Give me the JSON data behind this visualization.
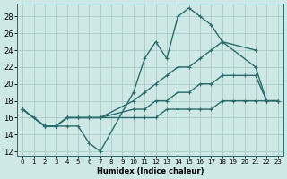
{
  "xlabel": "Humidex (Indice chaleur)",
  "xlim": [
    -0.5,
    23.5
  ],
  "ylim": [
    11.5,
    29.5
  ],
  "xticks": [
    0,
    1,
    2,
    3,
    4,
    5,
    6,
    7,
    8,
    9,
    10,
    11,
    12,
    13,
    14,
    15,
    16,
    17,
    18,
    19,
    20,
    21,
    22,
    23
  ],
  "yticks": [
    12,
    14,
    16,
    18,
    20,
    22,
    24,
    26,
    28
  ],
  "bg_color": "#cde8e5",
  "grid_color": "#aecfcc",
  "line_color": "#2a6b6b",
  "line1": {
    "x": [
      0,
      1,
      2,
      3,
      4,
      5,
      6,
      7,
      10,
      11,
      12,
      13,
      14,
      15,
      16,
      17,
      18,
      21
    ],
    "y": [
      17,
      16,
      15,
      15,
      15,
      15,
      13,
      12,
      19,
      23,
      25,
      23,
      28,
      29,
      28,
      27,
      25,
      24
    ]
  },
  "line2": {
    "x": [
      0,
      2,
      3,
      4,
      5,
      6,
      7,
      10,
      11,
      12,
      13,
      14,
      15,
      16,
      17,
      18,
      21,
      22,
      23
    ],
    "y": [
      17,
      15,
      15,
      16,
      16,
      16,
      16,
      18,
      19,
      20,
      21,
      22,
      22,
      23,
      24,
      25,
      22,
      18,
      18
    ]
  },
  "line3": {
    "x": [
      0,
      2,
      3,
      4,
      5,
      6,
      7,
      10,
      11,
      12,
      13,
      14,
      15,
      16,
      17,
      18,
      19,
      20,
      21,
      22,
      23
    ],
    "y": [
      17,
      15,
      15,
      16,
      16,
      16,
      16,
      17,
      17,
      18,
      18,
      19,
      19,
      20,
      20,
      21,
      21,
      21,
      21,
      18,
      18
    ]
  },
  "line4": {
    "x": [
      0,
      2,
      3,
      4,
      5,
      6,
      7,
      10,
      11,
      12,
      13,
      14,
      15,
      16,
      17,
      18,
      19,
      20,
      21,
      22,
      23
    ],
    "y": [
      17,
      15,
      15,
      16,
      16,
      16,
      16,
      16,
      16,
      16,
      17,
      17,
      17,
      17,
      17,
      18,
      18,
      18,
      18,
      18,
      18
    ]
  }
}
